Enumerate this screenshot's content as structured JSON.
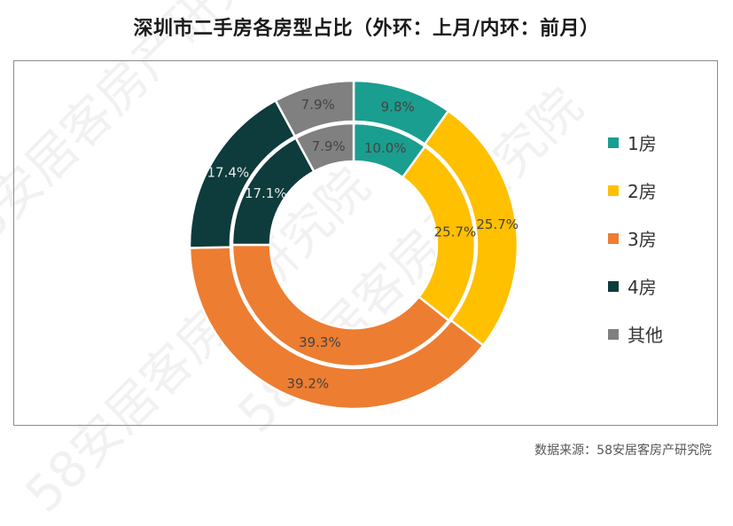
{
  "title": "深圳市二手房各房型占比（外环：上月/内环：前月）",
  "source": "数据来源：58安居客房产研究院",
  "watermark": "58安居客房产研究院",
  "chart_data": {
    "type": "pie",
    "subtype": "double-donut",
    "categories": [
      "1房",
      "2房",
      "3房",
      "4房",
      "其他"
    ],
    "colors": [
      "#1a9e8f",
      "#ffc000",
      "#ed7d31",
      "#0e3b3b",
      "#808080"
    ],
    "series": [
      {
        "name": "上月",
        "ring": "outer",
        "values": [
          9.8,
          25.7,
          39.2,
          17.4,
          7.9
        ],
        "labels": [
          "9.8%",
          "25.7%",
          "39.2%",
          "17.4%",
          "7.9%"
        ]
      },
      {
        "name": "前月",
        "ring": "inner",
        "values": [
          10.0,
          25.7,
          39.3,
          17.1,
          7.9
        ],
        "labels": [
          "10.0%",
          "25.7%",
          "39.3%",
          "17.1%",
          "7.9%"
        ]
      }
    ],
    "legend_position": "right"
  }
}
